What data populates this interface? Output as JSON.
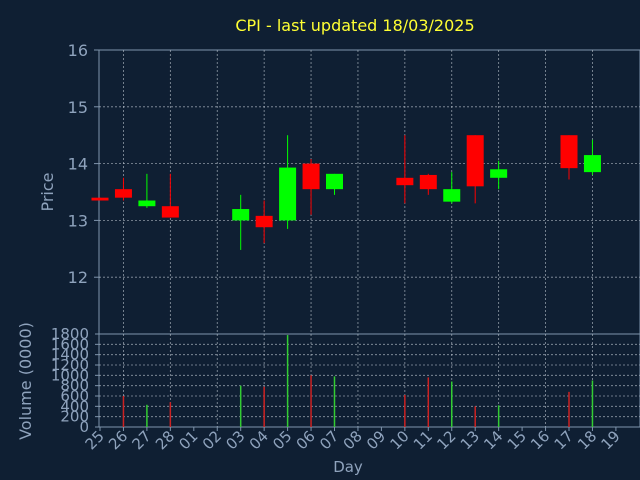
{
  "chart_data": {
    "type": "candlestick",
    "title": "CPI - last updated 18/03/2025",
    "xlabel": "Day",
    "price_panel": {
      "ylabel": "Price",
      "ylim": [
        11,
        16
      ],
      "yticks": [
        "12",
        "13",
        "14",
        "15",
        "16"
      ]
    },
    "volume_panel": {
      "ylabel": "Volume (0000)",
      "ylim": [
        0,
        1800
      ],
      "yticks": [
        "0",
        "200",
        "400",
        "600",
        "800",
        "1000",
        "1200",
        "1400",
        "1600",
        "1800"
      ]
    },
    "x_ticks": [
      "25",
      "26",
      "27",
      "28",
      "01",
      "02",
      "03",
      "04",
      "05",
      "06",
      "07",
      "08",
      "09",
      "10",
      "11",
      "12",
      "13",
      "14",
      "15",
      "16",
      "17",
      "18",
      "19"
    ],
    "grid": true,
    "colors": {
      "background": "#0f1f33",
      "axis": "#7f95ad",
      "tick_label": "#8fa3bd",
      "title": "#ffff33",
      "grid": "#c4ccd6",
      "up": "#00ff00",
      "down": "#ff0000",
      "up_volume": "#33cc33",
      "down_volume": "#cc2222"
    },
    "candles": [
      {
        "day": "25",
        "open": 13.4,
        "high": 13.4,
        "low": 13.35,
        "close": 13.35
      },
      {
        "day": "26",
        "open": 13.55,
        "high": 13.75,
        "low": 13.35,
        "close": 13.4
      },
      {
        "day": "27",
        "open": 13.25,
        "high": 13.82,
        "low": 13.22,
        "close": 13.35
      },
      {
        "day": "28",
        "open": 13.25,
        "high": 13.82,
        "low": 13.05,
        "close": 13.05
      },
      {
        "day": "03",
        "open": 13.0,
        "high": 13.45,
        "low": 12.48,
        "close": 13.2
      },
      {
        "day": "04",
        "open": 13.08,
        "high": 13.35,
        "low": 12.6,
        "close": 12.88
      },
      {
        "day": "05",
        "open": 13.0,
        "high": 14.5,
        "low": 12.85,
        "close": 13.93
      },
      {
        "day": "06",
        "open": 14.0,
        "high": 14.08,
        "low": 13.1,
        "close": 13.55
      },
      {
        "day": "07",
        "open": 13.55,
        "high": 13.82,
        "low": 13.45,
        "close": 13.82
      },
      {
        "day": "10",
        "open": 13.75,
        "high": 14.5,
        "low": 13.3,
        "close": 13.62
      },
      {
        "day": "11",
        "open": 13.8,
        "high": 13.82,
        "low": 13.45,
        "close": 13.55
      },
      {
        "day": "12",
        "open": 13.33,
        "high": 13.85,
        "low": 13.3,
        "close": 13.55
      },
      {
        "day": "13",
        "open": 14.5,
        "high": 14.5,
        "low": 13.3,
        "close": 13.6
      },
      {
        "day": "14",
        "open": 13.75,
        "high": 14.05,
        "low": 13.55,
        "close": 13.9
      },
      {
        "day": "17",
        "open": 14.5,
        "high": 14.5,
        "low": 13.72,
        "close": 13.92
      },
      {
        "day": "18",
        "open": 13.85,
        "high": 14.42,
        "low": 13.8,
        "close": 14.15
      }
    ],
    "volume": [
      {
        "day": "25",
        "value": 0,
        "direction": "down"
      },
      {
        "day": "26",
        "value": 600,
        "direction": "down"
      },
      {
        "day": "27",
        "value": 430,
        "direction": "up"
      },
      {
        "day": "28",
        "value": 480,
        "direction": "down"
      },
      {
        "day": "03",
        "value": 800,
        "direction": "up"
      },
      {
        "day": "04",
        "value": 780,
        "direction": "down"
      },
      {
        "day": "05",
        "value": 1780,
        "direction": "up"
      },
      {
        "day": "06",
        "value": 1000,
        "direction": "down"
      },
      {
        "day": "07",
        "value": 980,
        "direction": "up"
      },
      {
        "day": "10",
        "value": 620,
        "direction": "down"
      },
      {
        "day": "11",
        "value": 960,
        "direction": "down"
      },
      {
        "day": "12",
        "value": 880,
        "direction": "up"
      },
      {
        "day": "13",
        "value": 400,
        "direction": "down"
      },
      {
        "day": "14",
        "value": 420,
        "direction": "up"
      },
      {
        "day": "17",
        "value": 680,
        "direction": "down"
      },
      {
        "day": "18",
        "value": 900,
        "direction": "up"
      }
    ]
  }
}
